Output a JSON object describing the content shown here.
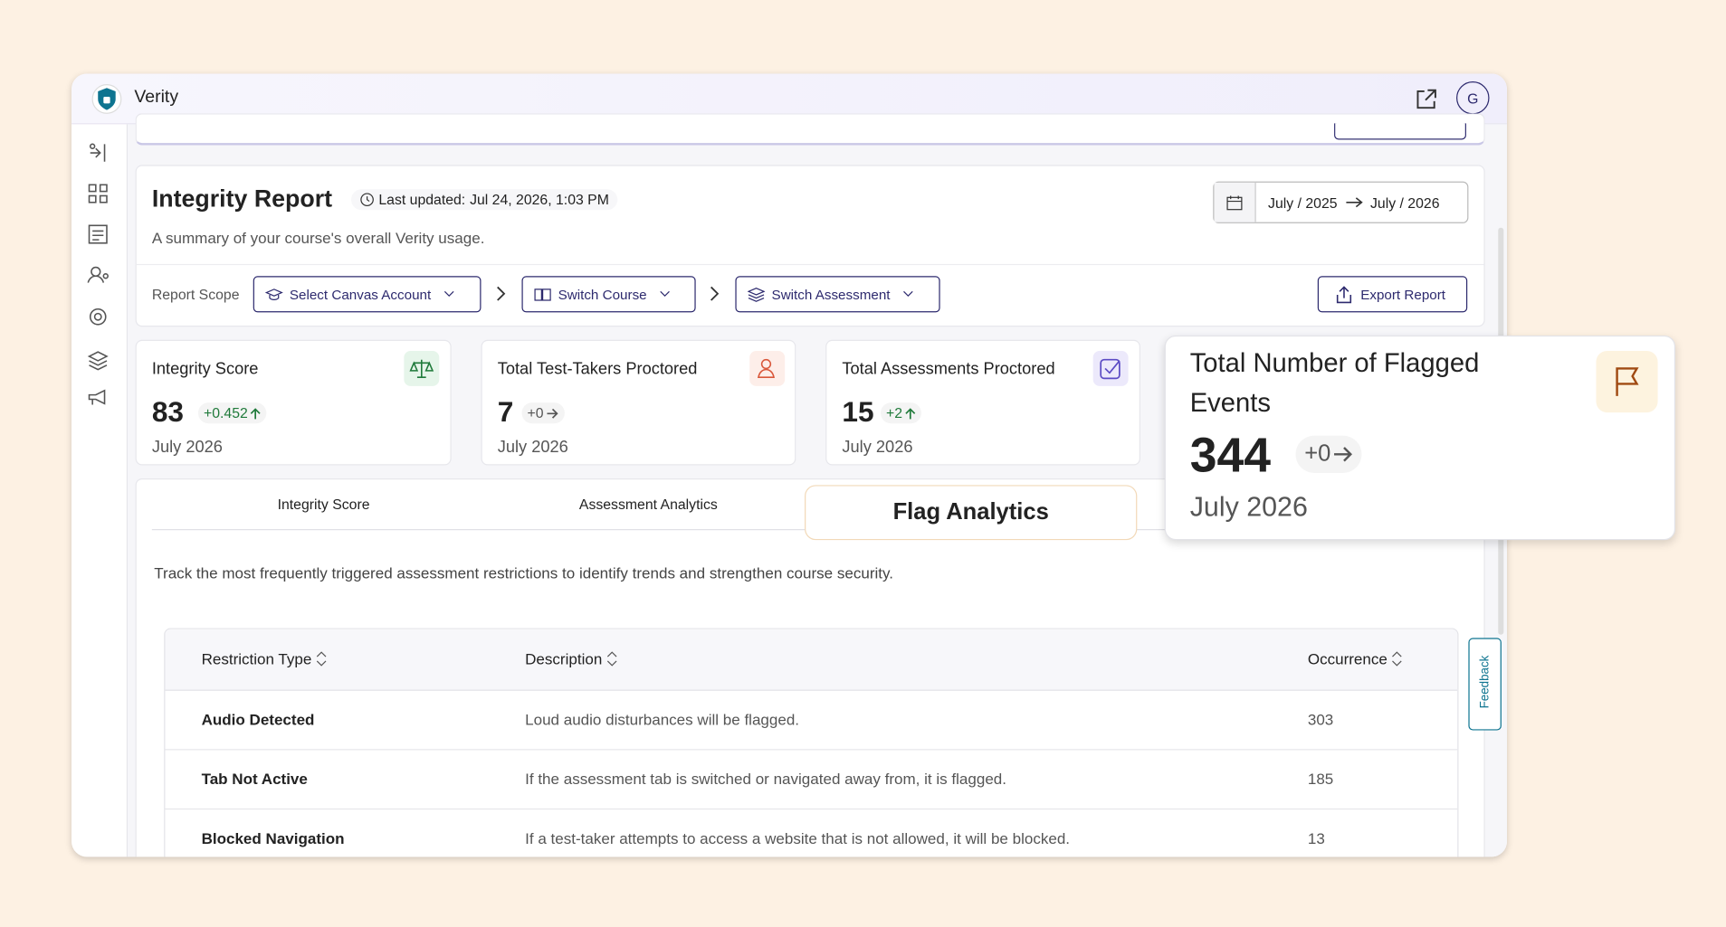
{
  "app": {
    "name": "Verity",
    "avatar": "G"
  },
  "report": {
    "title": "Integrity Report",
    "last_updated_label": "Last updated:",
    "last_updated": "Jul 24, 2026, 1:03 PM",
    "subtitle": "A summary of your course's overall Verity usage.",
    "date_from": "July / 2025",
    "date_to": "July / 2026",
    "scope_label": "Report Scope",
    "scope": [
      "Select Canvas Account",
      "Switch Course",
      "Switch Assessment"
    ],
    "export": "Export Report"
  },
  "stats": [
    {
      "title": "Integrity Score",
      "value": 83,
      "change": "+0.452",
      "period": "July 2026"
    },
    {
      "title": "Total Test-Takers Proctored",
      "value": 7,
      "change": "+0",
      "period": "July 2026"
    },
    {
      "title": "Total Assessments Proctored",
      "value": 15,
      "change": "+2",
      "period": "July 2026"
    },
    {
      "title": "Total Number of Flagged Events",
      "value": 344,
      "change": "+0",
      "period": "July 2026"
    }
  ],
  "tabs": [
    "Integrity Score",
    "Assessment Analytics",
    "Flag Analytics"
  ],
  "tab_description": "Track the most frequently triggered assessment restrictions to identify trends and strengthen course security.",
  "table": {
    "columns": [
      "Restriction Type",
      "Description",
      "Occurrence"
    ],
    "rows": [
      [
        "Audio Detected",
        "Loud audio disturbances will be flagged.",
        303
      ],
      [
        "Tab Not Active",
        "If the assessment tab is switched or navigated away from, it is flagged.",
        185
      ],
      [
        "Blocked Navigation",
        "If a test-taker attempts to access a website that is not allowed, it will be blocked.",
        13
      ]
    ]
  },
  "feedback": "Feedback"
}
